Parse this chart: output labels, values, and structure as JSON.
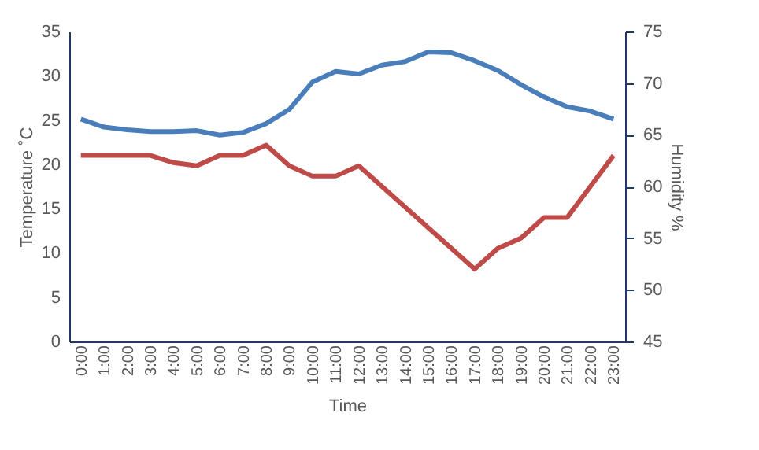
{
  "chart_data": {
    "type": "line",
    "xlabel": "Time",
    "ylabel": "Temperature ˚C",
    "y2label": "Humidity %",
    "categories": [
      "0:00",
      "1:00",
      "2:00",
      "3:00",
      "4:00",
      "5:00",
      "6:00",
      "7:00",
      "8:00",
      "9:00",
      "10:00",
      "11:00",
      "12:00",
      "13:00",
      "14:00",
      "15:00",
      "16:00",
      "17:00",
      "18:00",
      "19:00",
      "20:00",
      "21:00",
      "22:00",
      "23:00"
    ],
    "series": [
      {
        "color": "#4a7ebb",
        "values": [
          25.1,
          24.2,
          23.9,
          23.7,
          23.7,
          23.8,
          23.3,
          23.6,
          24.6,
          26.2,
          29.3,
          30.5,
          30.2,
          31.2,
          31.6,
          32.7,
          32.6,
          31.7,
          30.6,
          29,
          27.6,
          26.5,
          26,
          25.1
        ]
      },
      {
        "color": "#be4b48",
        "axis": "y2",
        "values": [
          63,
          63,
          63,
          63,
          62.3,
          62,
          63,
          63,
          64,
          62,
          61,
          61,
          62,
          60,
          58,
          56,
          54,
          52,
          54,
          55,
          57,
          57,
          60,
          63
        ]
      }
    ],
    "ylim": [
      0,
      35
    ],
    "yticks": [
      0,
      5,
      10,
      15,
      20,
      25,
      30,
      35
    ],
    "y2lim": [
      45,
      75
    ],
    "y2ticks": [
      45,
      50,
      55,
      60,
      65,
      70,
      75
    ],
    "grid": false,
    "marker": "none",
    "line_style": "solid"
  }
}
